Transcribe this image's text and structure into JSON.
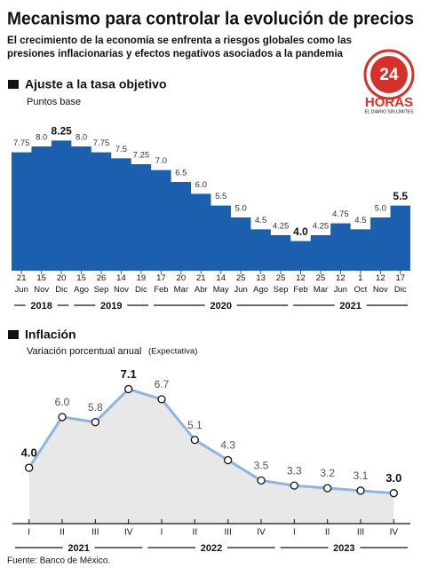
{
  "header": {
    "title": "Mecanismo para controlar la evolución de precios",
    "subtitle_lines": [
      "El crecimiento de la economía se enfrenta a riesgos globales como las",
      "presiones inflacionarias y efectos negativos asociados a la pandemia"
    ]
  },
  "logo": {
    "number": "24",
    "name": "HORAS",
    "tagline": "EL DIARIO SIN LÍMITES"
  },
  "chart_data": [
    {
      "type": "step-area",
      "title": "Ajuste a la tasa objetivo",
      "subtitle": "Puntos base",
      "color": "#1c5fae",
      "categories": [
        "21 Jun",
        "15 Nov",
        "20 Dic",
        "15 Ago",
        "26 Sep",
        "14 Nov",
        "19 Dic",
        "17 Feb",
        "20 Mar",
        "21 Abr",
        "14 May",
        "25 Jun",
        "13 Ago",
        "25 Sep",
        "12 Feb",
        "25 Mar",
        "12 Jun",
        "1 Oct",
        "12 Nov",
        "17 Dic"
      ],
      "values": [
        7.75,
        8.0,
        8.25,
        8.0,
        7.75,
        7.5,
        7.25,
        7.0,
        6.5,
        6.0,
        5.5,
        5.0,
        4.5,
        4.25,
        4.0,
        4.25,
        4.75,
        4.5,
        5.0,
        5.5
      ],
      "value_labels": [
        "7.75",
        "8.0",
        "8.25",
        "8.0",
        "7.75",
        "7.5",
        "7.25",
        "7.0",
        "6.5",
        "6.0",
        "5.5",
        "5.0",
        "4.5",
        "4.25",
        "4.0",
        "4.25",
        "4.75",
        "4.5",
        "5.0",
        "5.5"
      ],
      "x_groups": [
        {
          "label": "2018",
          "count": 3
        },
        {
          "label": "2019",
          "count": 4
        },
        {
          "label": "2020",
          "count": 7
        },
        {
          "label": "2021",
          "count": 6
        }
      ],
      "ylim": [
        2.75,
        8.75
      ]
    },
    {
      "type": "line",
      "title": "Inflación",
      "subtitle": "Variación porcentual anual",
      "note": "(Expectativa)",
      "color": "#8fb4de",
      "area_color": "#e8e8e8",
      "categories": [
        "I",
        "II",
        "III",
        "IV",
        "I",
        "II",
        "III",
        "IV",
        "I",
        "II",
        "III",
        "IV"
      ],
      "values": [
        4.0,
        6.0,
        5.8,
        7.1,
        6.7,
        5.1,
        4.3,
        3.5,
        3.3,
        3.2,
        3.1,
        3.0
      ],
      "value_labels": [
        "4.0",
        "6.0",
        "5.8",
        "7.1",
        "6.7",
        "5.1",
        "4.3",
        "3.5",
        "3.3",
        "3.2",
        "3.1",
        "3.0"
      ],
      "x_groups": [
        {
          "label": "2021",
          "count": 4
        },
        {
          "label": "2022",
          "count": 4
        },
        {
          "label": "2023",
          "count": 4
        }
      ],
      "ylim": [
        1.8,
        8.2
      ]
    }
  ],
  "source": "Fuente: Banco de México."
}
